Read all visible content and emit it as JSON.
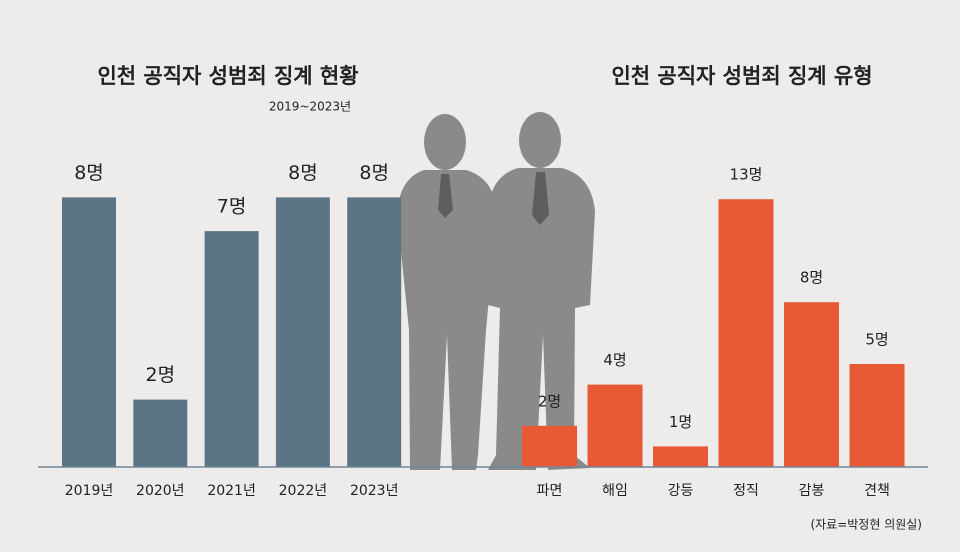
{
  "chart_data": [
    {
      "type": "bar",
      "title": "인천 공직자 성범죄 징계 현황",
      "subtitle": "2019~2023년",
      "categories": [
        "2019년",
        "2020년",
        "2021년",
        "2022년",
        "2023년"
      ],
      "values": [
        8,
        2,
        7,
        8,
        8
      ],
      "value_labels": [
        "8명",
        "2명",
        "7명",
        "8명",
        "8명"
      ],
      "color": "#5b7587"
    },
    {
      "type": "bar",
      "title": "인천 공직자 성범죄 징계 유형",
      "categories": [
        "파면",
        "해임",
        "강등",
        "정직",
        "감봉",
        "견책"
      ],
      "values": [
        2,
        4,
        1,
        13,
        8,
        5
      ],
      "value_labels": [
        "2명",
        "4명",
        "1명",
        "13명",
        "8명",
        "5명"
      ],
      "color": "#e85a35"
    }
  ],
  "source": "(자료=박정현 의원실)"
}
